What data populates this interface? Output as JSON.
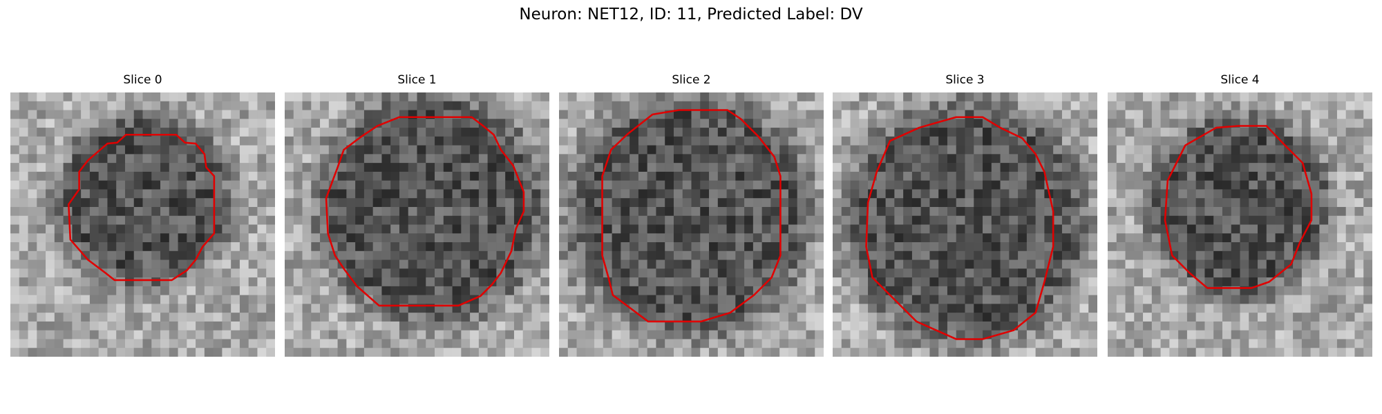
{
  "title": "Neuron: NET12, ID: 11, Predicted Label: DV",
  "panels": [
    {
      "title": "Slice 0"
    },
    {
      "title": "Slice 1"
    },
    {
      "title": "Slice 2"
    },
    {
      "title": "Slice 3"
    },
    {
      "title": "Slice 4"
    }
  ]
}
